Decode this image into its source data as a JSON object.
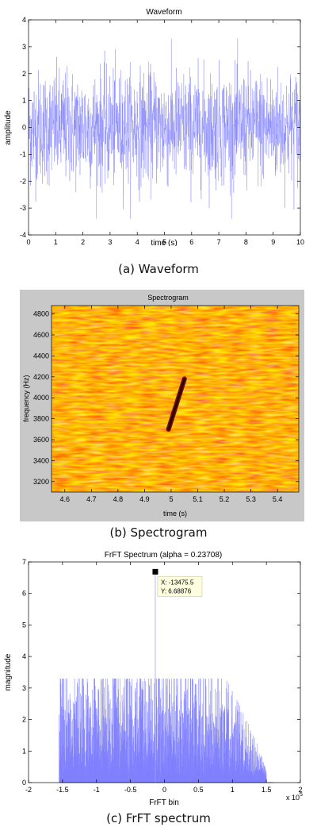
{
  "chart_data": [
    {
      "type": "line",
      "title": "Waveform",
      "xlabel": "time (s)",
      "ylabel": "amplitude",
      "xlim": [
        0,
        10
      ],
      "ylim": [
        -4,
        4
      ],
      "xticks": [
        0,
        1,
        2,
        3,
        4,
        5,
        6,
        7,
        8,
        9,
        10
      ],
      "yticks": [
        -4,
        -3,
        -2,
        -1,
        0,
        1,
        2,
        3,
        4
      ],
      "series": [
        {
          "color": "#8080ff",
          "note_range": [
            -3.4,
            3.3
          ],
          "typical_envelope": [
            -2.1,
            2.1
          ]
        }
      ],
      "grid": false,
      "caption": "(a)  Waveform"
    },
    {
      "type": "heatmap",
      "title": "Spectrogram",
      "xlabel": "time (s)",
      "ylabel": "frequency (Hz)",
      "xlim": [
        4.55,
        5.48
      ],
      "ylim": [
        3100,
        4880
      ],
      "xticks": [
        4.6,
        4.7,
        4.8,
        4.9,
        5,
        5.1,
        5.2,
        5.3,
        5.4
      ],
      "yticks": [
        3200,
        3400,
        3600,
        3800,
        4000,
        4200,
        4400,
        4600,
        4800
      ],
      "colormap": [
        "#cc1e00",
        "#ff6000",
        "#ffb000",
        "#ffff60"
      ],
      "chirp_segment": {
        "t_start": 4.99,
        "f_start": 3700,
        "t_end": 5.05,
        "f_end": 4180
      },
      "caption": "(b)  Spectrogram"
    },
    {
      "type": "line",
      "title": "FrFT Spectrum (alpha = 0.23708)",
      "xlabel": "FrFT bin",
      "ylabel": "magnitude",
      "xlim": [
        -2,
        2
      ],
      "ylim": [
        0,
        7
      ],
      "xticks": [
        "-2",
        "-1.5",
        "-1",
        "-0.5",
        "0",
        "0.5",
        "1",
        "1.5",
        "2"
      ],
      "yticks": [
        0,
        1,
        2,
        3,
        4,
        5,
        6,
        7
      ],
      "x_exponent_label": "x 10",
      "x_exponent_power": "5",
      "series": [
        {
          "color": "#8080ff",
          "support": [
            -1.55,
            1.5
          ]
        }
      ],
      "peak": {
        "x": -0.134755,
        "y": 6.68876
      },
      "datatip": {
        "x_text": "X: -13475.5",
        "y_text": "Y: 6.68876"
      },
      "caption": "(c)  FrFT spectrum"
    }
  ]
}
